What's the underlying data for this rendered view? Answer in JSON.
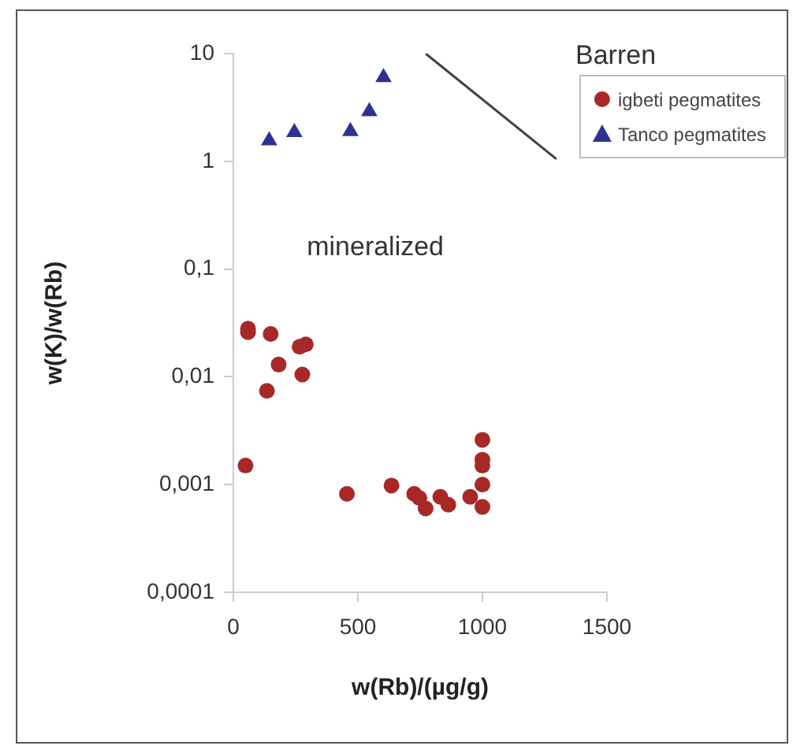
{
  "chart_data": {
    "type": "scatter",
    "xlabel": "w(Rb)/(µg/g)",
    "ylabel": "w(K)/w(Rb)",
    "log": "y",
    "xlim": [
      0,
      1500
    ],
    "xticks": [
      0,
      500,
      1000,
      1500
    ],
    "ylim": [
      0.0001,
      10
    ],
    "yticks": [
      {
        "value": 0.0001,
        "label": "0,0001"
      },
      {
        "value": 0.001,
        "label": "0,001"
      },
      {
        "value": 0.01,
        "label": "0,01"
      },
      {
        "value": 0.1,
        "label": "0,1"
      },
      1,
      10
    ],
    "grid": false,
    "legend": "top right",
    "annotations": [
      "Barren",
      "mineralized"
    ],
    "series": [
      {
        "name": "igbeti pegmatites",
        "color": "#a82828",
        "marker": "circle",
        "x": [
          59,
          59,
          150,
          266,
          291,
          182,
          277,
          135,
          49,
          456,
          635,
          726,
          747,
          772,
          831,
          863,
          951,
          1000,
          1000,
          1000,
          1000,
          1000
        ],
        "values": [
          0.028,
          0.026,
          0.025,
          0.019,
          0.02,
          0.013,
          0.0105,
          0.0074,
          0.0015,
          0.00082,
          0.00098,
          0.00082,
          0.00075,
          0.0006,
          0.00077,
          0.00065,
          0.00077,
          0.0026,
          0.0017,
          0.0015,
          0.001,
          0.00062
        ]
      },
      {
        "name": "Tanco pegmatites",
        "color": "#2e3192",
        "marker": "triangle",
        "x": [
          144,
          245,
          470,
          546,
          603
        ],
        "values": [
          1.56,
          1.86,
          1.9,
          2.9,
          6
        ]
      },
      {
        "type": "line",
        "color": "#404040",
        "marker": "none",
        "x": [
          772,
          1297
        ],
        "values": [
          10,
          1.05
        ]
      }
    ]
  }
}
